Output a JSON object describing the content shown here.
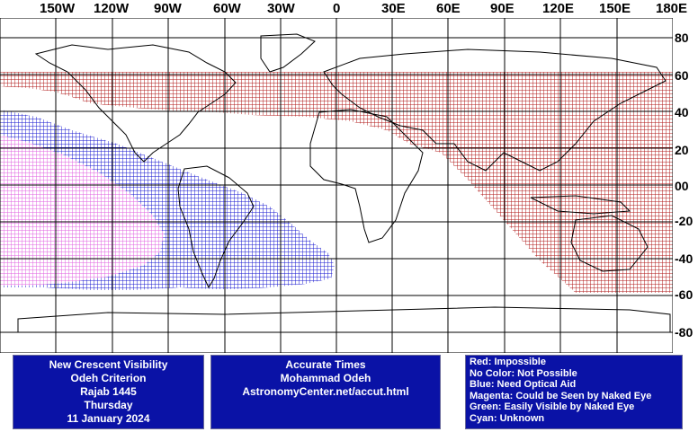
{
  "map": {
    "lon_labels": [
      "150W",
      "120W",
      "90W",
      "60W",
      "30W",
      "0",
      "30E",
      "60E",
      "90E",
      "120E",
      "150E",
      "180E"
    ],
    "lat_labels": [
      "80",
      "60",
      "40",
      "20",
      "00",
      "-20",
      "-40",
      "-60",
      "-80"
    ],
    "colors": {
      "impossible": "#b01818",
      "optical_aid": "#1a1ad0",
      "naked_eye": "#e060e0",
      "land": "#000000",
      "grid": "#000000"
    }
  },
  "info_left": {
    "title": "New Crescent Visibility",
    "criterion": "Odeh Criterion",
    "month": "Rajab 1445",
    "weekday": "Thursday",
    "date": "11 January 2024"
  },
  "info_mid": {
    "title": "Accurate Times",
    "author": "Mohammad Odeh",
    "site": "AstronomyCenter.net/accut.html"
  },
  "legend": [
    "Red: Impossible",
    "No Color: Not Possible",
    "Blue: Need Optical Aid",
    "Magenta: Could be Seen by Naked Eye",
    "Green: Easily Visible by Naked Eye",
    "Cyan: Unknown"
  ]
}
